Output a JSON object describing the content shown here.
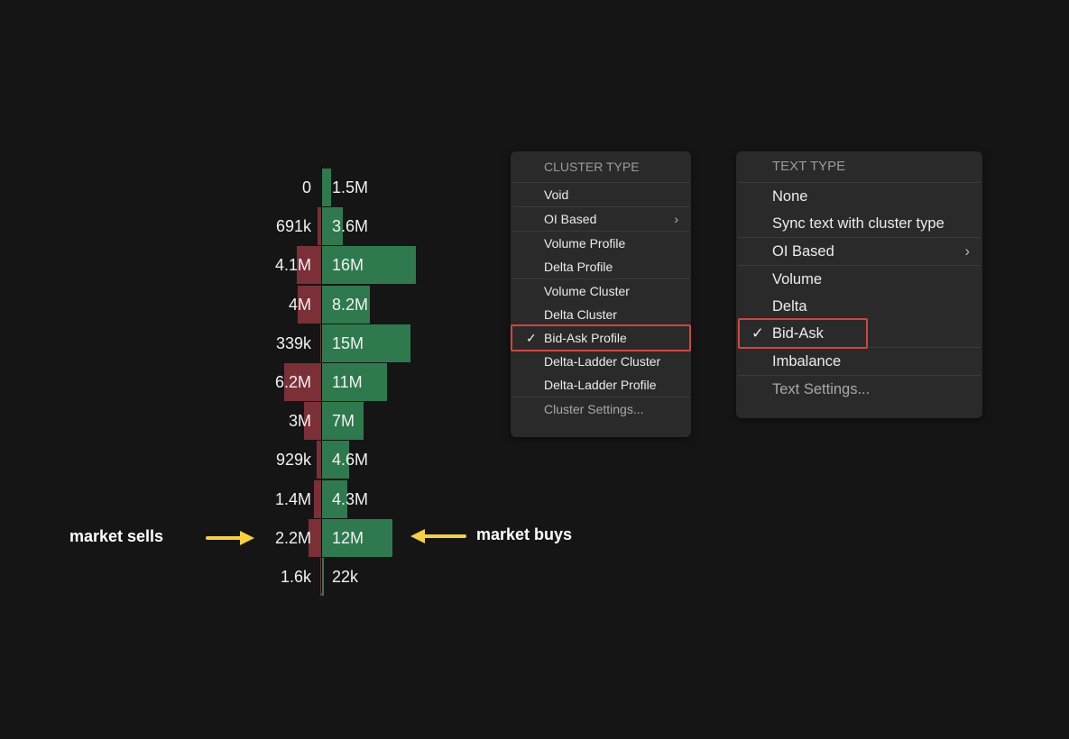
{
  "profile": {
    "rows": [
      {
        "bid": "0",
        "ask": "1.5M",
        "bid_value": 0,
        "ask_value": 1500000
      },
      {
        "bid": "691k",
        "ask": "3.6M",
        "bid_value": 691000,
        "ask_value": 3600000
      },
      {
        "bid": "4.1M",
        "ask": "16M",
        "bid_value": 4100000,
        "ask_value": 16000000
      },
      {
        "bid": "4M",
        "ask": "8.2M",
        "bid_value": 4000000,
        "ask_value": 8200000
      },
      {
        "bid": "339k",
        "ask": "15M",
        "bid_value": 339000,
        "ask_value": 15000000
      },
      {
        "bid": "6.2M",
        "ask": "11M",
        "bid_value": 6200000,
        "ask_value": 11000000
      },
      {
        "bid": "3M",
        "ask": "7M",
        "bid_value": 3000000,
        "ask_value": 7000000
      },
      {
        "bid": "929k",
        "ask": "4.6M",
        "bid_value": 929000,
        "ask_value": 4600000
      },
      {
        "bid": "1.4M",
        "ask": "4.3M",
        "bid_value": 1400000,
        "ask_value": 4300000
      },
      {
        "bid": "2.2M",
        "ask": "12M",
        "bid_value": 2200000,
        "ask_value": 12000000
      },
      {
        "bid": "1.6k",
        "ask": "22k",
        "bid_value": 1600,
        "ask_value": 22000
      }
    ],
    "colors": {
      "ask": "#2e7a4e",
      "bid": "#7b3038",
      "background": "#151515"
    }
  },
  "annotations": {
    "sells": "market sells",
    "buys": "market buys",
    "arrow_color": "#f7d13b"
  },
  "cluster_menu": {
    "header": "CLUSTER TYPE",
    "groups": [
      [
        {
          "label": "Void"
        }
      ],
      [
        {
          "label": "OI Based",
          "submenu": true
        }
      ],
      [
        {
          "label": "Volume Profile"
        },
        {
          "label": "Delta Profile"
        }
      ],
      [
        {
          "label": "Volume Cluster"
        },
        {
          "label": "Delta Cluster"
        },
        {
          "label": "Bid-Ask Profile",
          "checked": true
        },
        {
          "label": "Delta-Ladder Cluster"
        },
        {
          "label": "Delta-Ladder Profile"
        }
      ],
      [
        {
          "label": "Cluster Settings...",
          "muted": true
        }
      ]
    ]
  },
  "text_menu": {
    "header": "TEXT TYPE",
    "groups": [
      [
        {
          "label": "None"
        },
        {
          "label": "Sync text with cluster type"
        }
      ],
      [
        {
          "label": "OI Based",
          "submenu": true
        }
      ],
      [
        {
          "label": "Volume"
        },
        {
          "label": "Delta"
        },
        {
          "label": "Bid-Ask",
          "checked": true
        }
      ],
      [
        {
          "label": "Imbalance"
        }
      ],
      [
        {
          "label": "Text Settings...",
          "muted": true
        }
      ]
    ]
  },
  "icons": {
    "check": "✓",
    "chevron": "›"
  },
  "highlight_color": "#d2453e"
}
